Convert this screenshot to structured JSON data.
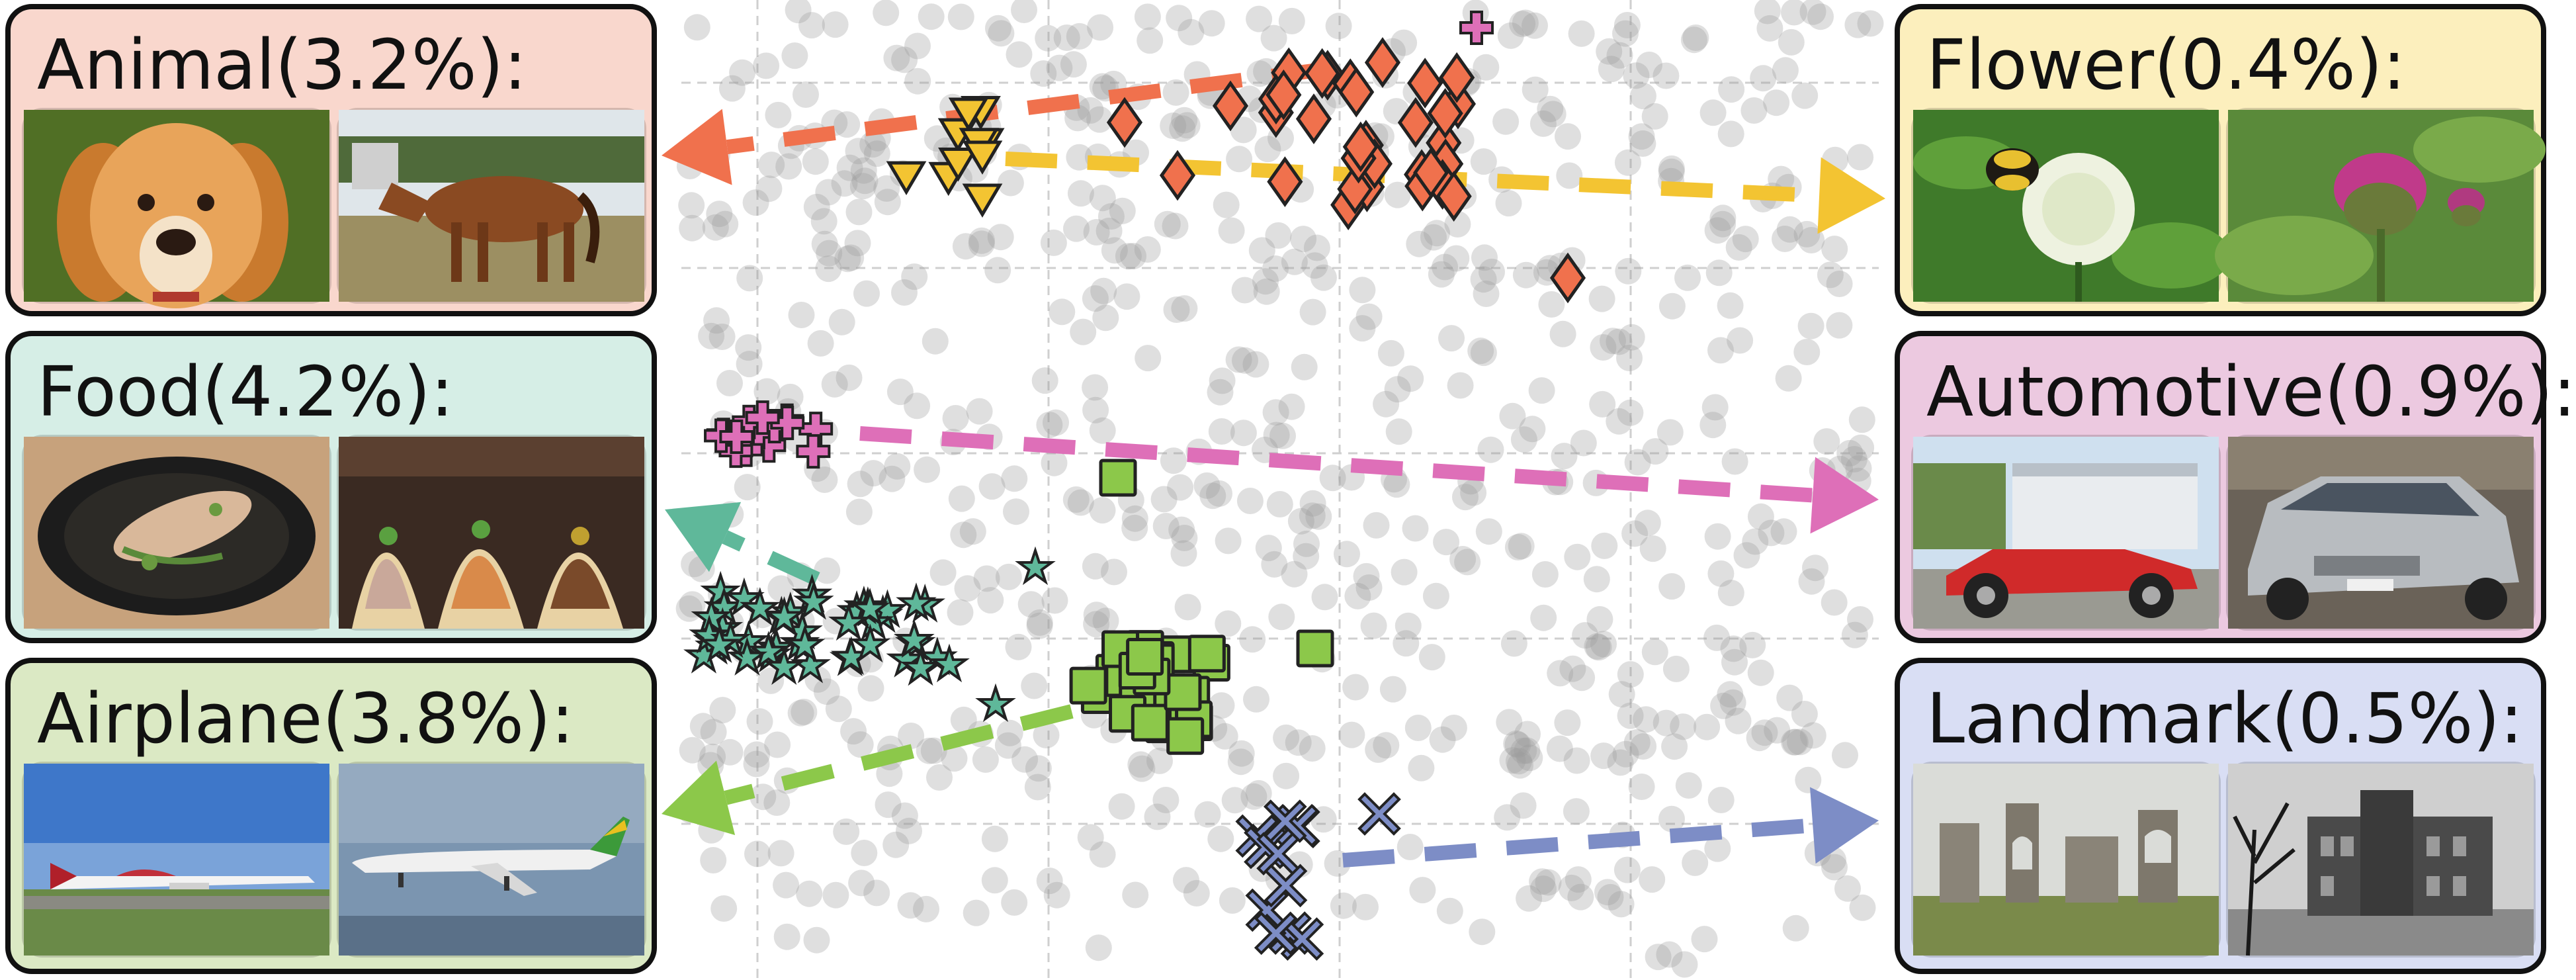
{
  "colors": {
    "Animal": "#f0714d",
    "Flower": "#f3c432",
    "Food": "#5fb89a",
    "Automotive": "#de6fb8",
    "Airplane": "#8cc84a",
    "Landmark": "#7d8dc6",
    "background_points": "#9a9a9a"
  },
  "panels": [
    {
      "key": "Animal",
      "title": "Animal(3.2%):",
      "bg": "#f9d7cd",
      "images": [
        "dog",
        "horse"
      ]
    },
    {
      "key": "Food",
      "title": "Food(4.2%):",
      "bg": "#d6eee6",
      "images": [
        "fish-dish",
        "tacos"
      ]
    },
    {
      "key": "Airplane",
      "title": "Airplane(3.8%):",
      "bg": "#dbe9c4",
      "images": [
        "jet-red",
        "jet-white"
      ]
    },
    {
      "key": "Flower",
      "title": "Flower(0.4%):",
      "bg": "#fcefbd",
      "images": [
        "clover-bee",
        "thistle"
      ]
    },
    {
      "key": "Automotive",
      "title": "Automotive(0.9%):",
      "bg": "#ecc9e0",
      "images": [
        "red-roadster",
        "silver-sedan"
      ]
    },
    {
      "key": "Landmark",
      "title": "Landmark(0.5%):",
      "bg": "#d9def4",
      "images": [
        "ruins",
        "brick-building"
      ]
    }
  ],
  "clusters": [
    {
      "key": "Animal",
      "marker": "diamond"
    },
    {
      "key": "Flower",
      "marker": "triangle-down"
    },
    {
      "key": "Food",
      "marker": "star"
    },
    {
      "key": "Automotive",
      "marker": "plus"
    },
    {
      "key": "Airplane",
      "marker": "square"
    },
    {
      "key": "Landmark",
      "marker": "x"
    }
  ],
  "arrows": [
    {
      "key": "Animal",
      "direction": "left"
    },
    {
      "key": "Flower",
      "direction": "right"
    },
    {
      "key": "Automotive",
      "direction": "right"
    },
    {
      "key": "Food",
      "direction": "left"
    },
    {
      "key": "Airplane",
      "direction": "left"
    },
    {
      "key": "Landmark",
      "direction": "right"
    }
  ]
}
